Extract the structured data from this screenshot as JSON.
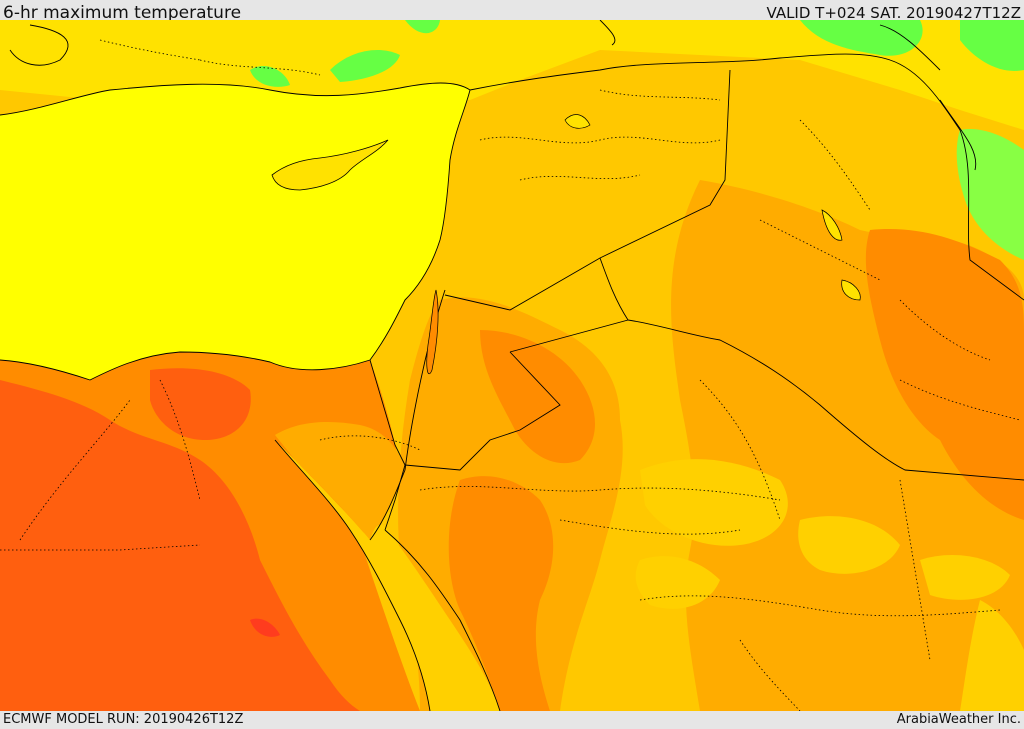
{
  "header": {
    "title": "6-hr maximum temperature",
    "valid": "VALID T+024 SAT. 20190427T12Z"
  },
  "footer": {
    "model_run": "ECMWF MODEL RUN: 20190426T12Z",
    "credit": "ArabiaWeather Inc."
  },
  "map_colors": {
    "sea": "#ffff00",
    "warm_yellow": "#ffe200",
    "gold": "#ffc800",
    "orange_light": "#ffac00",
    "orange": "#ff8c00",
    "orange_red": "#ff5f0f",
    "red": "#ff3c1e",
    "cool_green": "#66ff44",
    "borders": "#000000"
  }
}
